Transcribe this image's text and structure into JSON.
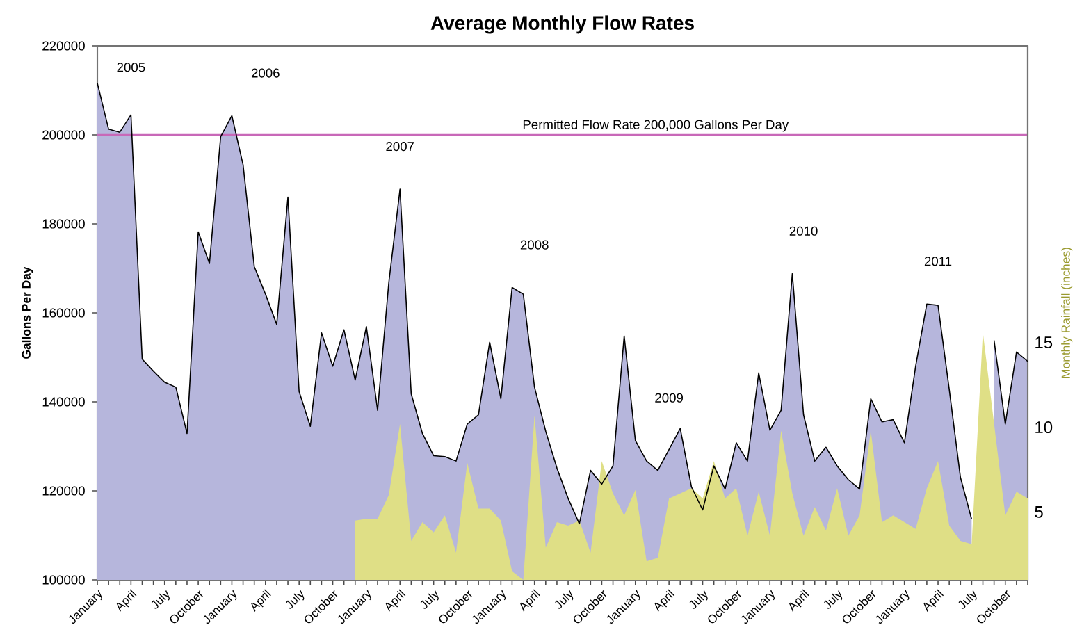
{
  "chart_data": {
    "type": "area",
    "title": "Average Monthly Flow Rates",
    "ylabel": "Gallons Per Day",
    "y2label": "Monthly Rainfall (inches)",
    "x": [
      "2005-01",
      "2005-02",
      "2005-03",
      "2005-04",
      "2005-05",
      "2005-06",
      "2005-07",
      "2005-08",
      "2005-09",
      "2005-10",
      "2005-11",
      "2005-12",
      "2006-01",
      "2006-02",
      "2006-03",
      "2006-04",
      "2006-05",
      "2006-06",
      "2006-07",
      "2006-08",
      "2006-09",
      "2006-10",
      "2006-11",
      "2006-12",
      "2007-01",
      "2007-02",
      "2007-03",
      "2007-04",
      "2007-05",
      "2007-06",
      "2007-07",
      "2007-08",
      "2007-09",
      "2007-10",
      "2007-11",
      "2007-12",
      "2008-01",
      "2008-02",
      "2008-03",
      "2008-04",
      "2008-05",
      "2008-06",
      "2008-07",
      "2008-08",
      "2008-09",
      "2008-10",
      "2008-11",
      "2008-12",
      "2009-01",
      "2009-02",
      "2009-03",
      "2009-04",
      "2009-05",
      "2009-06",
      "2009-07",
      "2009-08",
      "2009-09",
      "2009-10",
      "2009-11",
      "2009-12",
      "2010-01",
      "2010-02",
      "2010-03",
      "2010-04",
      "2010-05",
      "2010-06",
      "2010-07",
      "2010-08",
      "2010-09",
      "2010-10",
      "2010-11",
      "2010-12",
      "2011-01",
      "2011-02",
      "2011-03",
      "2011-04",
      "2011-05",
      "2011-06",
      "2011-07",
      "2011-08",
      "2011-09",
      "2011-10",
      "2011-11",
      "2011-12"
    ],
    "series": [
      {
        "color": "#b6b6dc",
        "values": [
          211600,
          201300,
          200600,
          204500,
          149600,
          146900,
          144400,
          143300,
          132900,
          178200,
          171100,
          199600,
          204300,
          193300,
          170400,
          164200,
          157400,
          186000,
          142300,
          134500,
          155500,
          148000,
          156200,
          144900,
          156900,
          138100,
          166800,
          187800,
          141800,
          132900,
          127900,
          127700,
          126700,
          135000,
          137100,
          153400,
          140700,
          165700,
          164200,
          143300,
          133400,
          125100,
          118300,
          112600,
          124600,
          121500,
          125600,
          154800,
          131300,
          126700,
          124600,
          129300,
          134000,
          120900,
          115700,
          125600,
          120400,
          130800,
          126700,
          146500,
          133600,
          138100,
          168800,
          137100,
          126700,
          129800,
          125600,
          122500,
          120400,
          140700,
          135500,
          136000,
          130800,
          148000,
          162000,
          161700,
          142800,
          123000,
          113600,
          null,
          153800,
          135000,
          151200,
          149100
        ]
      },
      {
        "axis": "y2",
        "color": "#dfdf86",
        "values": [
          null,
          null,
          null,
          null,
          null,
          null,
          null,
          null,
          null,
          null,
          null,
          null,
          null,
          null,
          null,
          null,
          null,
          null,
          null,
          null,
          null,
          null,
          null,
          4.5,
          4.6,
          4.6,
          6.0,
          10.2,
          3.3,
          4.4,
          3.8,
          4.8,
          2.6,
          7.9,
          5.2,
          5.2,
          4.5,
          1.5,
          1.0,
          10.7,
          2.9,
          4.4,
          4.2,
          4.5,
          2.6,
          8.0,
          6.1,
          4.8,
          6.3,
          2.1,
          2.3,
          5.8,
          6.1,
          6.4,
          5.8,
          8.0,
          5.8,
          6.4,
          3.6,
          6.2,
          3.6,
          9.8,
          6.1,
          3.6,
          5.3,
          3.9,
          6.4,
          3.6,
          4.8,
          9.8,
          4.4,
          4.8,
          4.4,
          4.0,
          6.4,
          8.0,
          4.2,
          3.3,
          3.1,
          15.6,
          10.2,
          4.8,
          6.2,
          5.8
        ]
      }
    ],
    "xlim": [
      "2005-01",
      "2011-12"
    ],
    "xticks": [
      {
        "value": "2005-01",
        "label": "January"
      },
      {
        "value": "2005-02",
        "label": null
      },
      {
        "value": "2005-03",
        "label": null
      },
      {
        "value": "2005-04",
        "label": "April"
      },
      {
        "value": "2005-05",
        "label": null
      },
      {
        "value": "2005-06",
        "label": null
      },
      {
        "value": "2005-07",
        "label": "July"
      },
      {
        "value": "2005-08",
        "label": null
      },
      {
        "value": "2005-09",
        "label": null
      },
      {
        "value": "2005-10",
        "label": "October"
      },
      {
        "value": "2005-11",
        "label": null
      },
      {
        "value": "2005-12",
        "label": null
      },
      {
        "value": "2006-01",
        "label": "January"
      },
      {
        "value": "2006-02",
        "label": null
      },
      {
        "value": "2006-03",
        "label": null
      },
      {
        "value": "2006-04",
        "label": "April"
      },
      {
        "value": "2006-05",
        "label": null
      },
      {
        "value": "2006-06",
        "label": null
      },
      {
        "value": "2006-07",
        "label": "July"
      },
      {
        "value": "2006-08",
        "label": null
      },
      {
        "value": "2006-09",
        "label": null
      },
      {
        "value": "2006-10",
        "label": "October"
      },
      {
        "value": "2006-11",
        "label": null
      },
      {
        "value": "2006-12",
        "label": null
      },
      {
        "value": "2007-01",
        "label": "January"
      },
      {
        "value": "2007-02",
        "label": null
      },
      {
        "value": "2007-03",
        "label": null
      },
      {
        "value": "2007-04",
        "label": "April"
      },
      {
        "value": "2007-05",
        "label": null
      },
      {
        "value": "2007-06",
        "label": null
      },
      {
        "value": "2007-07",
        "label": "July"
      },
      {
        "value": "2007-08",
        "label": null
      },
      {
        "value": "2007-09",
        "label": null
      },
      {
        "value": "2007-10",
        "label": "October"
      },
      {
        "value": "2007-11",
        "label": null
      },
      {
        "value": "2007-12",
        "label": null
      },
      {
        "value": "2008-01",
        "label": "January"
      },
      {
        "value": "2008-02",
        "label": null
      },
      {
        "value": "2008-03",
        "label": null
      },
      {
        "value": "2008-04",
        "label": "April"
      },
      {
        "value": "2008-05",
        "label": null
      },
      {
        "value": "2008-06",
        "label": null
      },
      {
        "value": "2008-07",
        "label": "July"
      },
      {
        "value": "2008-08",
        "label": null
      },
      {
        "value": "2008-09",
        "label": null
      },
      {
        "value": "2008-10",
        "label": "October"
      },
      {
        "value": "2008-11",
        "label": null
      },
      {
        "value": "2008-12",
        "label": null
      },
      {
        "value": "2009-01",
        "label": "January"
      },
      {
        "value": "2009-02",
        "label": null
      },
      {
        "value": "2009-03",
        "label": null
      },
      {
        "value": "2009-04",
        "label": "April"
      },
      {
        "value": "2009-05",
        "label": null
      },
      {
        "value": "2009-06",
        "label": null
      },
      {
        "value": "2009-07",
        "label": "July"
      },
      {
        "value": "2009-08",
        "label": null
      },
      {
        "value": "2009-09",
        "label": null
      },
      {
        "value": "2009-10",
        "label": "October"
      },
      {
        "value": "2009-11",
        "label": null
      },
      {
        "value": "2009-12",
        "label": null
      },
      {
        "value": "2010-01",
        "label": "January"
      },
      {
        "value": "2010-02",
        "label": null
      },
      {
        "value": "2010-03",
        "label": null
      },
      {
        "value": "2010-04",
        "label": "April"
      },
      {
        "value": "2010-05",
        "label": null
      },
      {
        "value": "2010-06",
        "label": null
      },
      {
        "value": "2010-07",
        "label": "July"
      },
      {
        "value": "2010-08",
        "label": null
      },
      {
        "value": "2010-09",
        "label": null
      },
      {
        "value": "2010-10",
        "label": "October"
      },
      {
        "value": "2010-11",
        "label": null
      },
      {
        "value": "2010-12",
        "label": null
      },
      {
        "value": "2011-01",
        "label": "January"
      },
      {
        "value": "2011-02",
        "label": null
      },
      {
        "value": "2011-03",
        "label": null
      },
      {
        "value": "2011-04",
        "label": "April"
      },
      {
        "value": "2011-05",
        "label": null
      },
      {
        "value": "2011-06",
        "label": null
      },
      {
        "value": "2011-07",
        "label": "July"
      },
      {
        "value": "2011-08",
        "label": null
      },
      {
        "value": "2011-09",
        "label": null
      },
      {
        "value": "2011-10",
        "label": "October"
      },
      {
        "value": "2011-11",
        "label": null
      },
      {
        "value": "2011-12",
        "label": null
      }
    ],
    "ylim": [
      100000,
      220000
    ],
    "yticks": [
      100000,
      120000,
      140000,
      160000,
      180000,
      200000,
      220000
    ],
    "y2lim": [
      1,
      32.5
    ],
    "y2ticks": [
      5,
      10,
      15
    ],
    "ref_lines": [
      {
        "axis": "y",
        "value": 200000,
        "label": "Permitted Flow Rate 200,000 Gallons Per Day",
        "color": "#c868b8"
      }
    ],
    "annotations": [
      "2005",
      "2006",
      "2007",
      "2008",
      "2009",
      "2010",
      "2011"
    ]
  }
}
